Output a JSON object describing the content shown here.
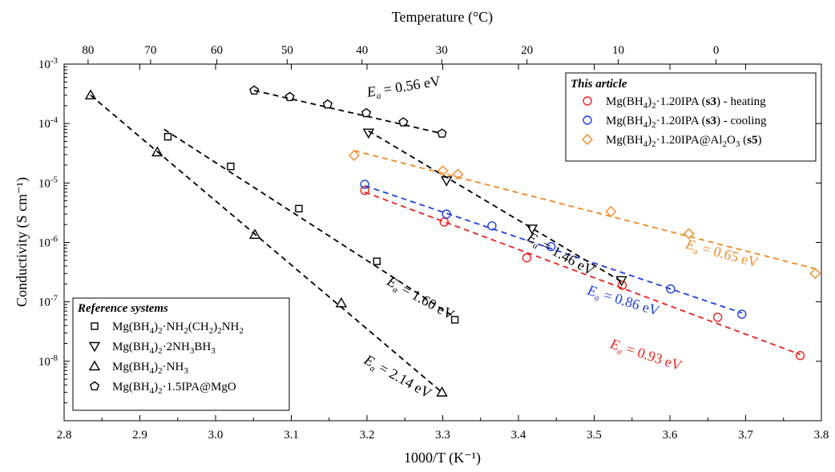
{
  "chart_data": {
    "type": "scatter",
    "title": "",
    "xlabel": "1000/T (K⁻¹)",
    "ylabel": "Conductivity (S cm⁻¹)",
    "top_xlabel": "Temperature (°C)",
    "xlim": [
      2.8,
      3.8
    ],
    "ylim_exponent": [
      -9,
      -3
    ],
    "yscale": "log",
    "x_ticks": [
      2.8,
      2.9,
      3.0,
      3.1,
      3.2,
      3.3,
      3.4,
      3.5,
      3.6,
      3.7,
      3.8
    ],
    "x_tick_labels": [
      "2.8",
      "2.9",
      "3.0",
      "3.1",
      "3.2",
      "3.3",
      "3.4",
      "3.5",
      "3.6",
      "3.7",
      "3.8"
    ],
    "y_ticks_exponent": [
      -8,
      -7,
      -6,
      -5,
      -4,
      -3
    ],
    "y_tick_base": "10",
    "top_ticks_celsius": [
      80,
      70,
      60,
      50,
      40,
      30,
      20,
      10,
      0
    ],
    "top_tick_labels": [
      "80",
      "70",
      "60",
      "50",
      "40",
      "30",
      "20",
      "10",
      "0"
    ],
    "grid": false,
    "legends": [
      {
        "title": "This article",
        "placement": "top-right",
        "entries": [
          {
            "series": "s3_heating",
            "prefix": "Mg(BH",
            "sub1": "4",
            "mid": ")",
            "sub2": "2",
            "text": "·1.20IPA (",
            "bold": "s3",
            "suffix": ") - heating"
          },
          {
            "series": "s3_cooling",
            "prefix": "Mg(BH",
            "sub1": "4",
            "mid": ")",
            "sub2": "2",
            "text": "·1.20IPA (",
            "bold": "s3",
            "suffix": ") - cooling"
          },
          {
            "series": "s5",
            "prefix": "Mg(BH",
            "sub1": "4",
            "mid": ")",
            "sub2": "2",
            "text": "·1.20IPA@Al",
            "sub3": "2",
            "text2": "O",
            "sub4": "3",
            "text3": " (",
            "bold": "s5",
            "suffix": ")"
          }
        ]
      },
      {
        "title": "Reference systems",
        "placement": "bottom-left",
        "entries": [
          {
            "series": "ref_en",
            "prefix": "Mg(BH",
            "sub1": "4",
            "mid": ")",
            "sub2": "2",
            "text": "·NH",
            "sub3": "2",
            "text2": "(CH",
            "sub4": "2",
            "text3": ")",
            "sub5": "2",
            "text4": "NH",
            "sub6": "2"
          },
          {
            "series": "ref_ab",
            "prefix": "Mg(BH",
            "sub1": "4",
            "mid": ")",
            "sub2": "2",
            "text": "·2NH",
            "sub3": "3",
            "text2": "BH",
            "sub4": "3"
          },
          {
            "series": "ref_nh3",
            "prefix": "Mg(BH",
            "sub1": "4",
            "mid": ")",
            "sub2": "2",
            "text": "·NH",
            "sub3": "3"
          },
          {
            "series": "ref_ipa_mgo",
            "prefix": "Mg(BH",
            "sub1": "4",
            "mid": ")",
            "sub2": "2",
            "text": "·1.5IPA@MgO"
          }
        ]
      }
    ],
    "series": [
      {
        "id": "s3_heating",
        "marker": "circle",
        "color": "#e8231f",
        "x": [
          3.197,
          3.302,
          3.411,
          3.537,
          3.663,
          3.772
        ],
        "y": [
          7.5e-06,
          2.2e-06,
          5.5e-07,
          1.9e-07,
          5.5e-08,
          1.25e-08
        ],
        "fit": {
          "x": [
            3.197,
            3.772
          ],
          "y": [
            7e-06,
            1.3e-08
          ]
        }
      },
      {
        "id": "s3_cooling",
        "marker": "circle",
        "color": "#1f3fe0",
        "x": [
          3.197,
          3.305,
          3.365,
          3.443,
          3.601,
          3.695
        ],
        "y": [
          9.5e-06,
          3e-06,
          1.9e-06,
          8.5e-07,
          1.65e-07,
          6.2e-08
        ],
        "fit": {
          "x": [
            3.197,
            3.695
          ],
          "y": [
            9e-06,
            6.5e-08
          ]
        }
      },
      {
        "id": "s5",
        "marker": "diamond",
        "color": "#f08a24",
        "x": [
          3.183,
          3.3,
          3.32,
          3.522,
          3.625,
          3.792
        ],
        "y": [
          2.9e-05,
          1.6e-05,
          1.4e-05,
          3.3e-06,
          1.4e-06,
          3e-07
        ],
        "fit": {
          "x": [
            3.183,
            3.792
          ],
          "y": [
            3.5e-05,
            3.6e-07
          ]
        }
      },
      {
        "id": "ref_en",
        "marker": "square",
        "color": "#000000",
        "x": [
          2.937,
          3.02,
          3.11,
          3.213,
          3.316
        ],
        "y": [
          6e-05,
          1.9e-05,
          3.7e-06,
          4.8e-07,
          5e-08
        ],
        "fit": {
          "x": [
            2.932,
            3.316
          ],
          "y": [
            8e-05,
            5.5e-08
          ]
        }
      },
      {
        "id": "ref_ab",
        "marker": "triangle-down",
        "color": "#000000",
        "x": [
          3.202,
          3.305,
          3.418,
          3.536
        ],
        "y": [
          7e-05,
          1.1e-05,
          1.7e-06,
          2.3e-07
        ],
        "fit": {
          "x": [
            3.202,
            3.536
          ],
          "y": [
            7.5e-05,
            2.2e-07
          ]
        }
      },
      {
        "id": "ref_nh3",
        "marker": "triangle-up",
        "color": "#000000",
        "x": [
          2.835,
          2.923,
          3.052,
          3.166,
          3.299
        ],
        "y": [
          0.0003,
          3.3e-05,
          1.35e-06,
          9.5e-08,
          3e-09
        ],
        "fit": {
          "x": [
            2.835,
            3.299
          ],
          "y": [
            0.0003,
            3e-09
          ]
        }
      },
      {
        "id": "ref_ipa_mgo",
        "marker": "pentagon",
        "color": "#000000",
        "x": [
          3.051,
          3.098,
          3.148,
          3.199,
          3.248,
          3.299
        ],
        "y": [
          0.00036,
          0.00028,
          0.00021,
          0.00015,
          0.000105,
          6.8e-05
        ],
        "fit": {
          "x": [
            3.051,
            3.299
          ],
          "y": [
            0.00036,
            6.8e-05
          ]
        }
      }
    ],
    "annotations": [
      {
        "series": "ref_ipa_mgo",
        "value": " = 0.56 eV",
        "at": [
          3.201,
          0.00028
        ],
        "angle": -9,
        "color": "#000000"
      },
      {
        "series": "ref_ab",
        "value": " = 1.46 eV",
        "at": [
          3.41,
          1.1e-06
        ],
        "angle": 29,
        "color": "#000000"
      },
      {
        "series": "ref_en",
        "value": " = 1.60 eV",
        "at": [
          3.225,
          2e-07
        ],
        "angle": 29,
        "color": "#000000"
      },
      {
        "series": "ref_nh3",
        "value": " = 2.14 eV",
        "at": [
          3.195,
          9.5e-09
        ],
        "angle": 29,
        "color": "#000000"
      },
      {
        "series": "s5",
        "value": " = 0.65 eV",
        "at": [
          3.62,
          8e-07
        ],
        "angle": 15,
        "color": "#f08a24"
      },
      {
        "series": "s3_cooling",
        "value": " = 0.86 eV",
        "at": [
          3.49,
          1.35e-07
        ],
        "angle": 17,
        "color": "#1f3fe0"
      },
      {
        "series": "s3_heating",
        "value": " = 0.93 eV",
        "at": [
          3.52,
          1.7e-08
        ],
        "angle": 18,
        "color": "#e8231f"
      }
    ],
    "annotation_symbol": "E",
    "annotation_subscript": "a"
  }
}
